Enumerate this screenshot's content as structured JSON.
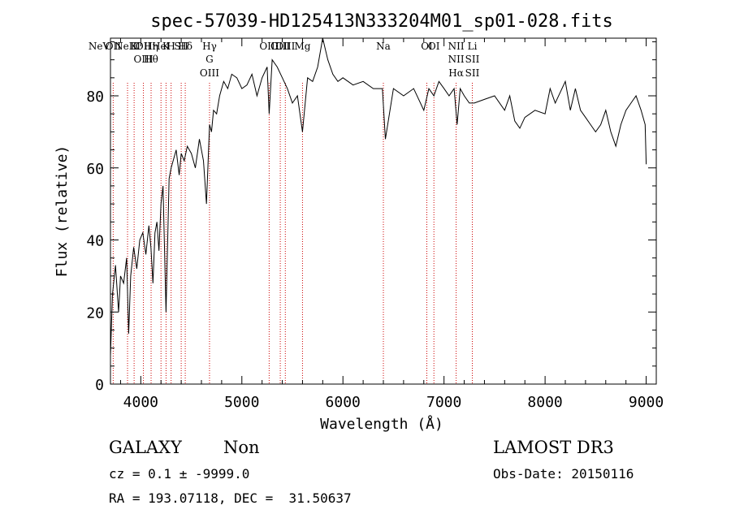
{
  "chart_data": {
    "type": "line",
    "title": "spec-57039-HD125413N333204M01_sp01-028.fits",
    "xlabel": "Wavelength (Å)",
    "ylabel": "Flux (relative)",
    "xlim": [
      3700,
      9100
    ],
    "ylim": [
      0,
      96
    ],
    "x_ticks": [
      4000,
      5000,
      6000,
      7000,
      8000,
      9000
    ],
    "y_ticks": [
      0,
      20,
      40,
      60,
      80
    ],
    "grid": false,
    "line_color": "#000000",
    "marker_color": "#cc0000",
    "series": [
      {
        "x": [
          3700,
          3720,
          3750,
          3780,
          3800,
          3830,
          3860,
          3880,
          3900,
          3930,
          3960,
          3990,
          4020,
          4050,
          4080,
          4100,
          4120,
          4140,
          4160,
          4180,
          4200,
          4220,
          4250,
          4280,
          4300,
          4320,
          4350,
          4380,
          4400,
          4430,
          4460,
          4500,
          4540,
          4580,
          4620,
          4650,
          4680,
          4700,
          4720,
          4750,
          4780,
          4820,
          4860,
          4900,
          4950,
          5000,
          5050,
          5100,
          5150,
          5200,
          5250,
          5270,
          5300,
          5350,
          5400,
          5450,
          5500,
          5550,
          5600,
          5650,
          5700,
          5750,
          5800,
          5850,
          5900,
          5950,
          6000,
          6100,
          6200,
          6300,
          6390,
          6420,
          6500,
          6600,
          6700,
          6800,
          6850,
          6900,
          6950,
          7000,
          7050,
          7100,
          7130,
          7160,
          7200,
          7250,
          7300,
          7400,
          7500,
          7600,
          7650,
          7700,
          7750,
          7800,
          7900,
          8000,
          8050,
          8100,
          8200,
          8250,
          8300,
          8350,
          8400,
          8450,
          8500,
          8550,
          8600,
          8650,
          8700,
          8750,
          8800,
          8850,
          8900,
          8950,
          8990,
          9000
        ],
        "y": [
          8,
          25,
          33,
          20,
          30,
          28,
          35,
          14,
          30,
          38,
          32,
          40,
          42,
          36,
          44,
          38,
          28,
          42,
          45,
          37,
          50,
          55,
          20,
          57,
          60,
          62,
          65,
          58,
          64,
          62,
          66,
          64,
          60,
          68,
          62,
          50,
          72,
          70,
          76,
          75,
          80,
          84,
          82,
          86,
          85,
          82,
          83,
          86,
          80,
          85,
          88,
          75,
          90,
          88,
          85,
          82,
          78,
          80,
          70,
          85,
          84,
          88,
          96,
          90,
          86,
          84,
          85,
          83,
          84,
          82,
          82,
          68,
          82,
          80,
          82,
          76,
          82,
          80,
          84,
          82,
          80,
          82,
          72,
          82,
          80,
          78,
          78,
          79,
          80,
          76,
          80,
          73,
          71,
          74,
          76,
          75,
          82,
          78,
          84,
          76,
          82,
          76,
          74,
          72,
          70,
          72,
          76,
          70,
          66,
          72,
          76,
          78,
          80,
          76,
          72,
          61
        ]
      }
    ],
    "line_markers": [
      {
        "wl": 3426,
        "labels": [
          "NeV"
        ]
      },
      {
        "wl": 3727,
        "labels": [
          "OII"
        ]
      },
      {
        "wl": 3869,
        "labels": [
          "NeIII"
        ]
      },
      {
        "wl": 3934,
        "labels": [
          "K"
        ]
      },
      {
        "wl": 4026,
        "labels": [
          "OII",
          "OIII"
        ]
      },
      {
        "wl": 4102,
        "labels": [
          "Hη",
          "Hθ"
        ]
      },
      {
        "wl": 4200,
        "labels": [
          "HeI"
        ]
      },
      {
        "wl": 4250,
        "labels": [
          "K"
        ]
      },
      {
        "wl": 4300,
        "labels": [
          "H"
        ]
      },
      {
        "wl": 4400,
        "labels": [
          "SII"
        ]
      },
      {
        "wl": 4440,
        "labels": [
          "Hδ"
        ]
      },
      {
        "wl": 4680,
        "labels": [
          "Hγ",
          "G",
          "OIII"
        ]
      },
      {
        "wl": 5270,
        "labels": [
          "OIII"
        ]
      },
      {
        "wl": 5380,
        "labels": [
          "OIII"
        ]
      },
      {
        "wl": 5430,
        "labels": [
          "OIII"
        ]
      },
      {
        "wl": 5600,
        "labels": [
          "Mg"
        ]
      },
      {
        "wl": 6400,
        "labels": [
          "Na"
        ]
      },
      {
        "wl": 6830,
        "labels": [
          "OI"
        ]
      },
      {
        "wl": 6900,
        "labels": [
          "OI"
        ]
      },
      {
        "wl": 7120,
        "labels": [
          "NII",
          "NII",
          "Hα"
        ]
      },
      {
        "wl": 7280,
        "labels": [
          "Li",
          "SII",
          "SII"
        ]
      }
    ]
  },
  "legend": {
    "object_class": "GALAXY",
    "subclass": "Non",
    "survey": "LAMOST DR3",
    "cz_line": "cz = 0.1 ± -9999.0",
    "obs_date": "Obs-Date: 20150116",
    "coords": "RA = 193.07118, DEC =  31.50637"
  }
}
